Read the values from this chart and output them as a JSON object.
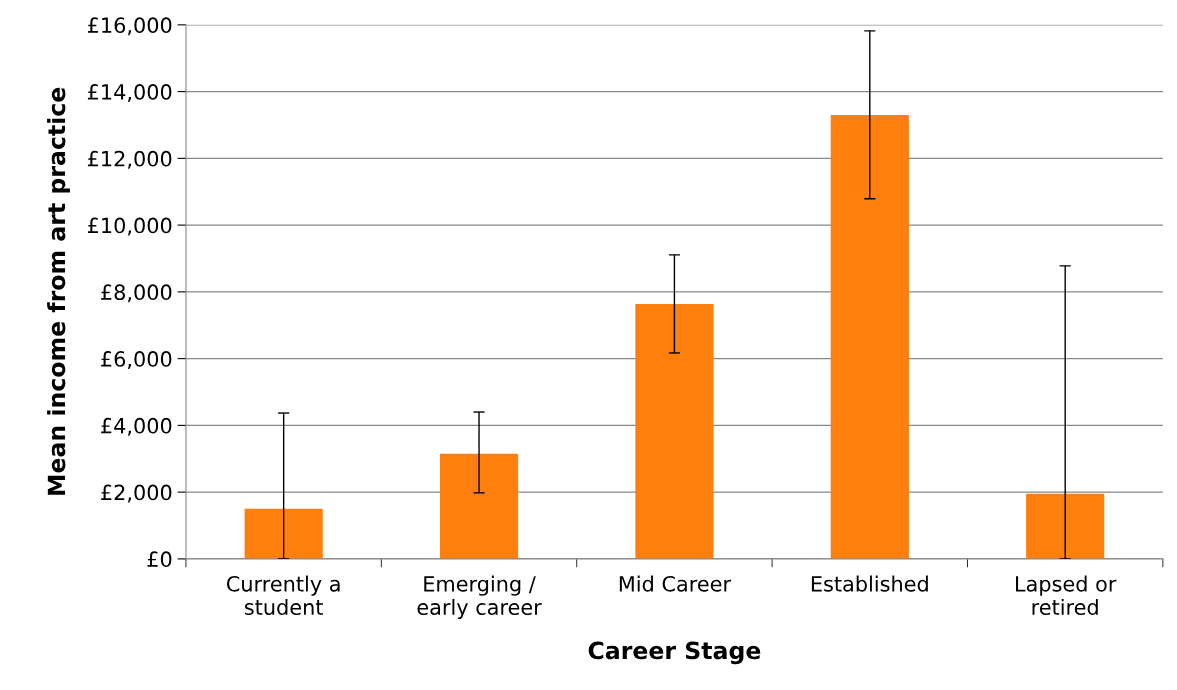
{
  "chart_data": {
    "type": "bar",
    "xlabel": "Career Stage",
    "ylabel": "Mean income from art practice",
    "categories": [
      "Currently a\nstudent",
      "Emerging /\nearly career",
      "Mid Career",
      "Established",
      "Lapsed or\nretired"
    ],
    "values": [
      1500,
      3150,
      7640,
      13300,
      1950
    ],
    "errors": [
      [
        0,
        4370
      ],
      [
        1980,
        4400
      ],
      [
        6170,
        9110
      ],
      [
        10790,
        15820
      ],
      [
        0,
        8780
      ]
    ],
    "color": "#ff7f0e",
    "ylim": [
      0,
      16000
    ],
    "yticks": [
      {
        "value": 0,
        "label": "£0"
      },
      {
        "value": 2000,
        "label": "£2,000"
      },
      {
        "value": 4000,
        "label": "£4,000"
      },
      {
        "value": 6000,
        "label": "£6,000"
      },
      {
        "value": 8000,
        "label": "£8,000"
      },
      {
        "value": 10000,
        "label": "£10,000"
      },
      {
        "value": 12000,
        "label": "£12,000"
      },
      {
        "value": 14000,
        "label": "£14,000"
      },
      {
        "value": 16000,
        "label": "£16,000"
      }
    ],
    "grid": "y"
  }
}
